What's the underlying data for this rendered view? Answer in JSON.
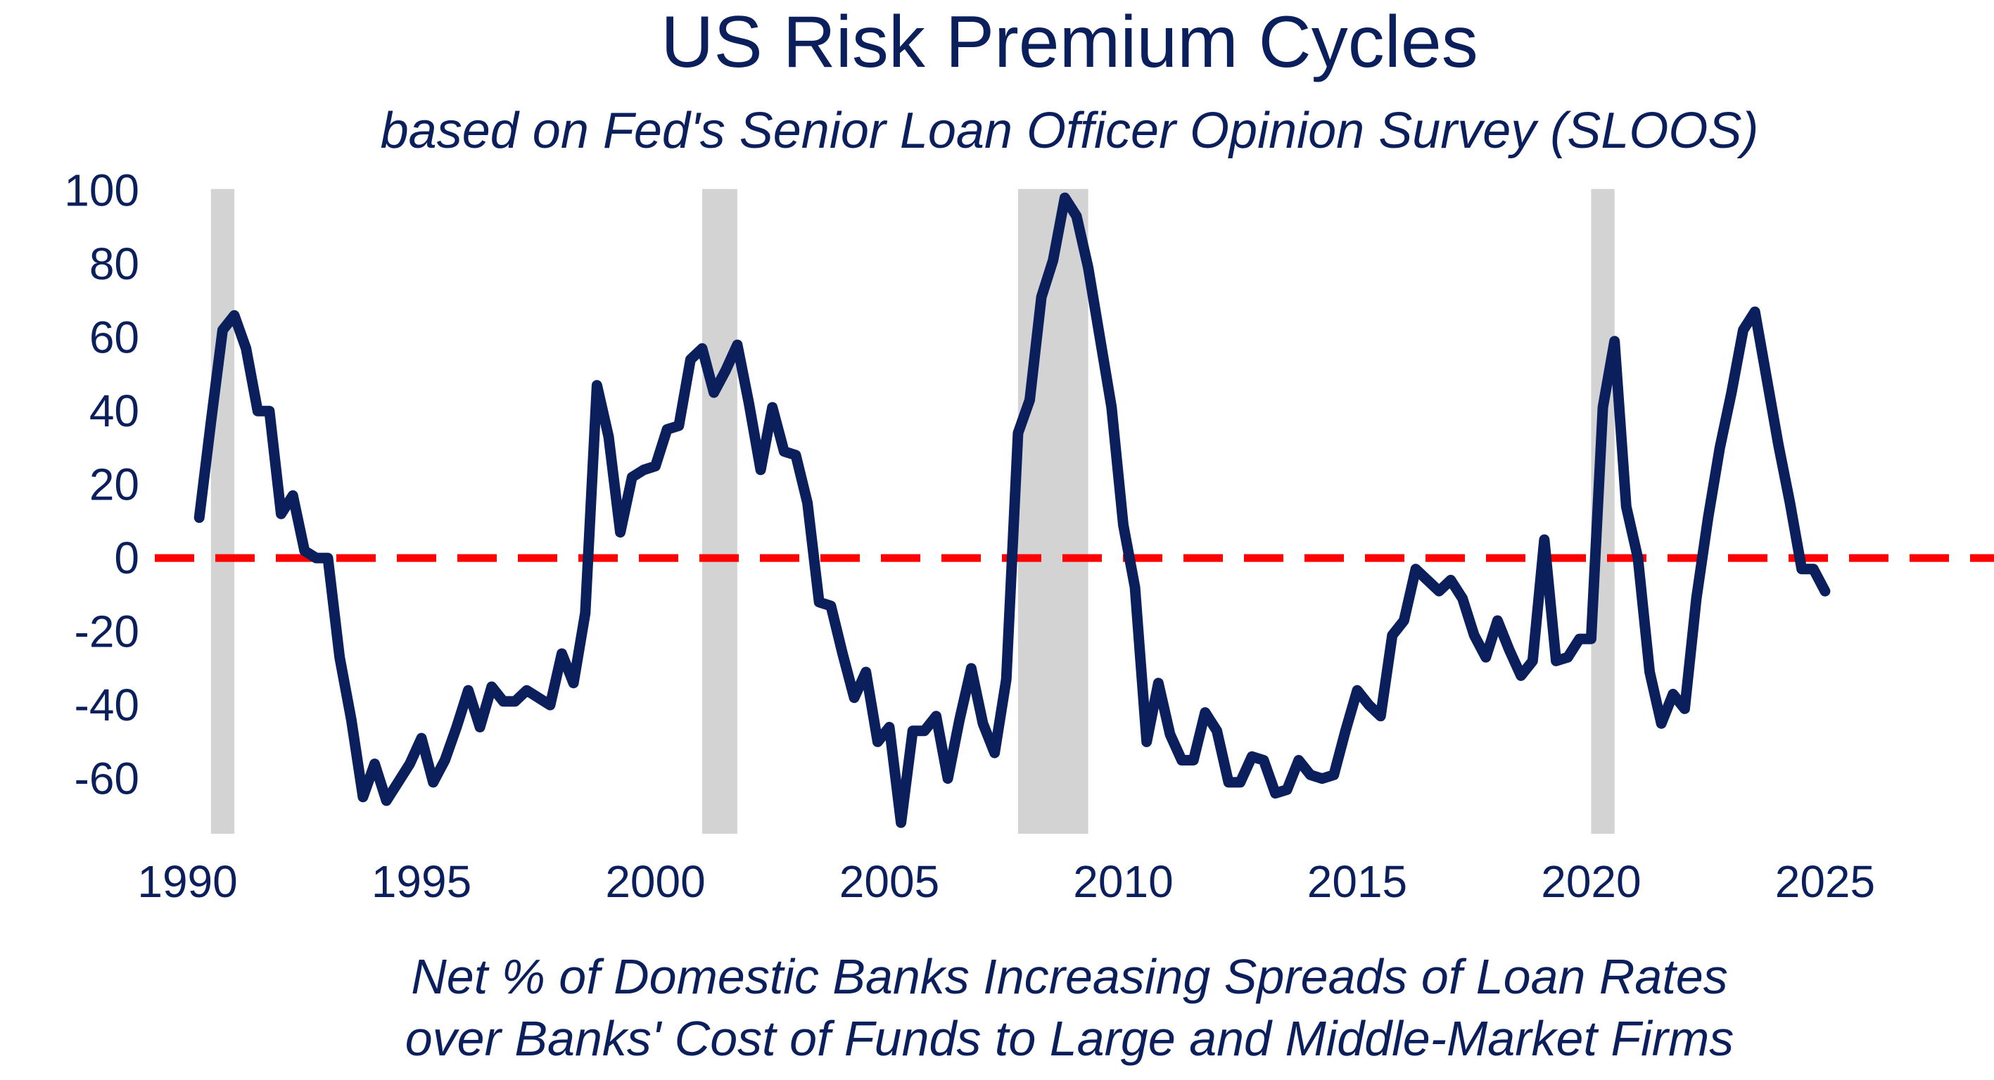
{
  "chart_data": {
    "type": "line",
    "title": "US Risk Premium Cycles",
    "subtitle": "based on Fed's Senior Loan Officer Opinion Survey (SLOOS)",
    "xlabel": "Net % of Domestic Banks Increasing Spreads of Loan Rates over Banks' Cost of Funds to Large and Middle-Market Firms",
    "xlabel_lines": [
      "Net % of Domestic Banks Increasing Spreads of Loan Rates",
      "over Banks' Cost of Funds to Large and Middle-Market Firms"
    ],
    "ylabel": "",
    "xlim": [
      1989.3,
      2028.4
    ],
    "ylim": [
      -75,
      103
    ],
    "x_ticks": [
      1990,
      1995,
      2000,
      2005,
      2010,
      2015,
      2020,
      2025
    ],
    "x_tick_labels": [
      "1990",
      "1995",
      "2000",
      "2005",
      "2010",
      "2015",
      "2020",
      "2025"
    ],
    "y_ticks": [
      -60,
      -40,
      -20,
      0,
      20,
      40,
      60,
      80,
      100
    ],
    "y_tick_labels": [
      "-60",
      "-40",
      "-20",
      "0",
      "20",
      "40",
      "60",
      "80",
      "100"
    ],
    "grid": false,
    "legend": "none",
    "line_color": "#0a1f5c",
    "zero_line": {
      "y": 0,
      "color": "#ff0000",
      "style": "dashed"
    },
    "recession_color": "#d3d3d3",
    "recessions": [
      {
        "start": 1990.5,
        "end": 1991.0
      },
      {
        "start": 2001.0,
        "end": 2001.75
      },
      {
        "start": 2007.75,
        "end": 2009.25
      },
      {
        "start": 2020.0,
        "end": 2020.5
      }
    ],
    "series": [
      {
        "x": [
          1990.25,
          1990.5,
          1990.75,
          1991.0,
          1991.25,
          1991.5,
          1991.75,
          1992.0,
          1992.25,
          1992.5,
          1992.75,
          1993.0,
          1993.25,
          1993.5,
          1993.75,
          1994.0,
          1994.25,
          1994.5,
          1994.75,
          1995.0,
          1995.25,
          1995.5,
          1995.75,
          1996.0,
          1996.25,
          1996.5,
          1996.75,
          1997.0,
          1997.25,
          1997.5,
          1997.75,
          1998.0,
          1998.25,
          1998.5,
          1998.75,
          1999.0,
          1999.25,
          1999.5,
          1999.75,
          2000.0,
          2000.25,
          2000.5,
          2000.75,
          2001.0,
          2001.25,
          2001.5,
          2001.75,
          2002.0,
          2002.25,
          2002.5,
          2002.75,
          2003.0,
          2003.25,
          2003.5,
          2003.75,
          2004.0,
          2004.25,
          2004.5,
          2004.75,
          2005.0,
          2005.25,
          2005.5,
          2005.75,
          2006.0,
          2006.25,
          2006.5,
          2006.75,
          2007.0,
          2007.25,
          2007.5,
          2007.75,
          2008.0,
          2008.25,
          2008.5,
          2008.75,
          2009.0,
          2009.25,
          2009.5,
          2009.75,
          2010.0,
          2010.25,
          2010.5,
          2010.75,
          2011.0,
          2011.25,
          2011.5,
          2011.75,
          2012.0,
          2012.25,
          2012.5,
          2012.75,
          2013.0,
          2013.25,
          2013.5,
          2013.75,
          2014.0,
          2014.25,
          2014.5,
          2014.75,
          2015.0,
          2015.25,
          2015.5,
          2015.75,
          2016.0,
          2016.25,
          2016.5,
          2016.75,
          2017.0,
          2017.25,
          2017.5,
          2017.75,
          2018.0,
          2018.25,
          2018.5,
          2018.75,
          2019.0,
          2019.25,
          2019.5,
          2019.75,
          2020.0,
          2020.25,
          2020.5,
          2020.75,
          2021.0,
          2021.25,
          2021.5,
          2021.75,
          2022.0,
          2022.25,
          2022.5,
          2022.75,
          2023.0,
          2023.25,
          2023.5,
          2023.75,
          2024.0,
          2024.25,
          2024.5,
          2024.75,
          2025.0
        ],
        "values": [
          11,
          37,
          62,
          66,
          57,
          40,
          40,
          12,
          17,
          2,
          0,
          0,
          -27,
          -44,
          -65,
          -56,
          -66,
          -61,
          -56,
          -49,
          -61,
          -55,
          -46,
          -36,
          -46,
          -35,
          -39,
          -39,
          -36,
          -38,
          -40,
          -26,
          -34,
          -15,
          47,
          33,
          7,
          22,
          24,
          25,
          35,
          36,
          54,
          57,
          45,
          51,
          58,
          42,
          24,
          41,
          29,
          28,
          15,
          -12,
          -13,
          -26,
          -38,
          -31,
          -50,
          -46,
          -72,
          -47,
          -47,
          -43,
          -60,
          -44,
          -30,
          -45,
          -53,
          -33,
          34,
          43,
          71,
          81,
          98,
          93,
          79,
          60,
          41,
          9,
          -8,
          -50,
          -34,
          -48,
          -55,
          -55,
          -42,
          -47,
          -61,
          -61,
          -54,
          -55,
          -64,
          -63,
          -55,
          -59,
          -60,
          -59,
          -47,
          -36,
          -40,
          -43,
          -21,
          -17,
          -3,
          -6,
          -9,
          -6,
          -11,
          -21,
          -27,
          -17,
          -25,
          -32,
          -28,
          5,
          -28,
          -27,
          -22,
          -22,
          41,
          59,
          14,
          0,
          -31,
          -45,
          -37,
          -41,
          -11,
          11,
          30,
          45,
          62,
          67,
          49,
          31,
          15,
          -3,
          -3,
          -9
        ]
      }
    ]
  }
}
